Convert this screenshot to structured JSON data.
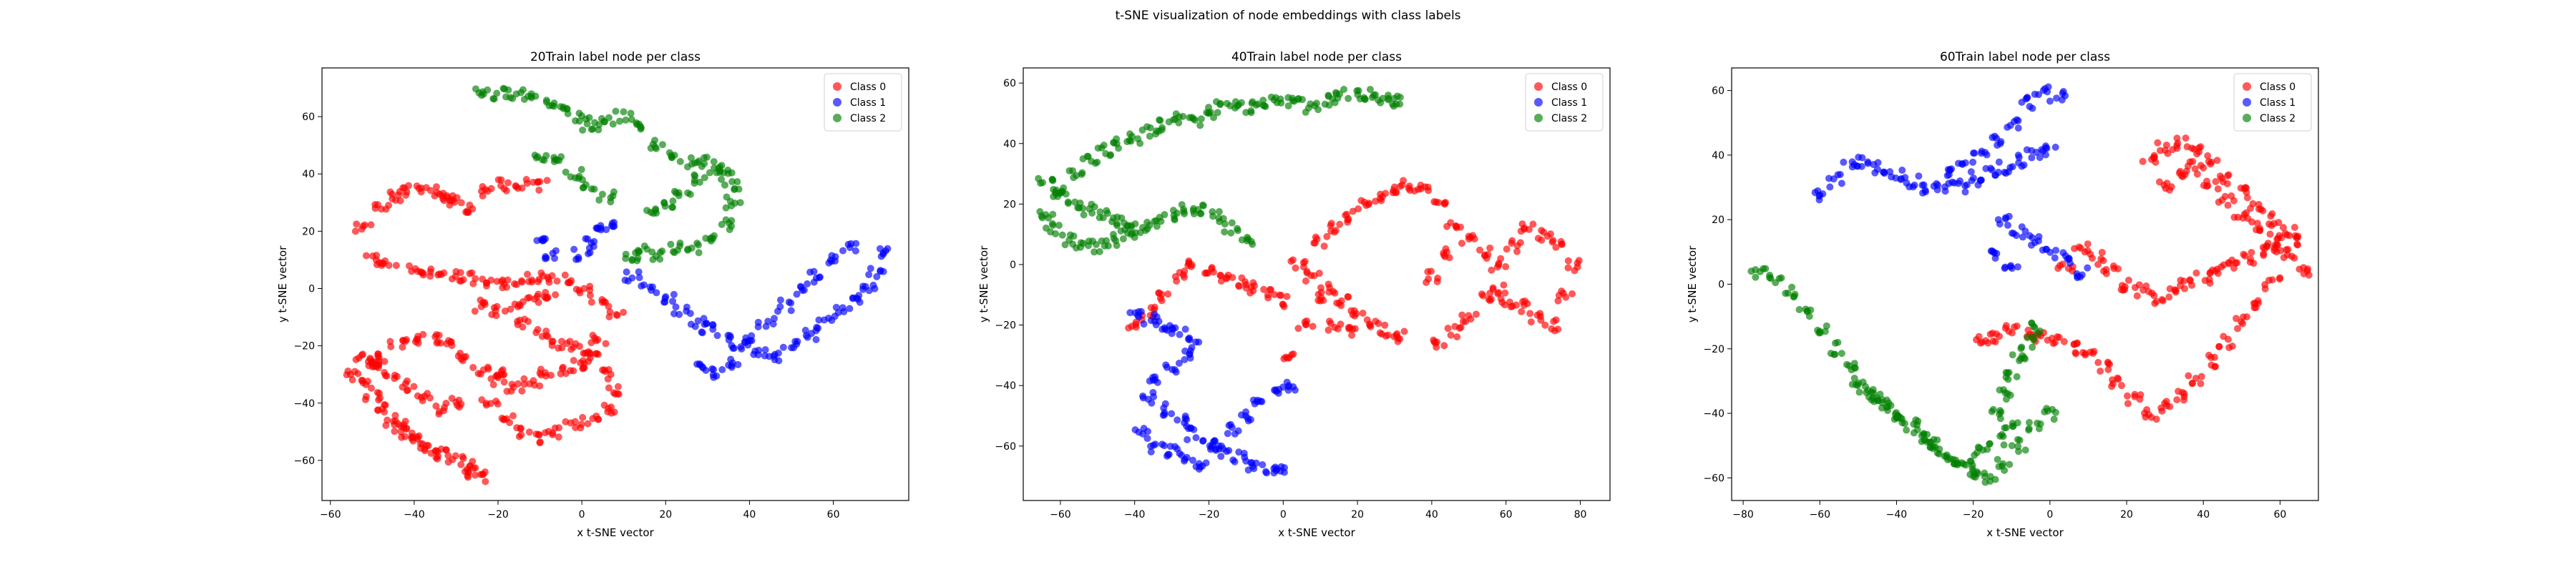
{
  "figure": {
    "suptitle": "t-SNE visualization of node embeddings with class labels"
  },
  "legend": {
    "entries": [
      {
        "name": "Class 0",
        "color": "#ff0000"
      },
      {
        "name": "Class 1",
        "color": "#0000ff"
      },
      {
        "name": "Class 2",
        "color": "#008000"
      }
    ]
  },
  "chart_data": [
    {
      "type": "scatter",
      "title": "20Train label node per class",
      "xlabel": "x t-SNE vector",
      "ylabel": "y t-SNE vector",
      "xlim": [
        -62,
        78
      ],
      "ylim": [
        -74,
        77
      ],
      "xticks": [
        -60,
        -40,
        -20,
        0,
        20,
        40,
        60
      ],
      "yticks": [
        -60,
        -40,
        -20,
        0,
        20,
        40,
        60
      ],
      "legend_position": "top-right",
      "grid": false,
      "series": [
        {
          "name": "Class 0",
          "color": "#ff0000",
          "x": [
            -52,
            -48,
            -45,
            -42,
            -38,
            -35,
            -32,
            -30,
            -26,
            -22,
            -18,
            -14,
            -10,
            -50,
            -46,
            -40,
            -36,
            -32,
            -28,
            -24,
            -20,
            -16,
            -12,
            -8,
            -4,
            0,
            4,
            8,
            -14,
            -10,
            -6,
            -2,
            2,
            6,
            8,
            6,
            2,
            -2,
            -6,
            -10,
            -14,
            -18,
            -22,
            -55,
            -52,
            -50,
            -48,
            -46,
            -44,
            -42,
            -40,
            -38,
            -36,
            -34,
            -30,
            -28,
            -26,
            -24,
            -52,
            -50,
            -48,
            -44,
            -40,
            -36,
            -32,
            -28,
            -24,
            -20,
            -30,
            -34,
            -38,
            -42,
            -46,
            -50,
            -20,
            -16,
            -12,
            -8,
            -4,
            0,
            2,
            4,
            -24,
            -20,
            -16,
            -12,
            -8
          ],
          "y": [
            22,
            28,
            32,
            34,
            35,
            34,
            32,
            30,
            28,
            34,
            36,
            37,
            36,
            10,
            8,
            6,
            6,
            5,
            4,
            2,
            2,
            2,
            3,
            4,
            3,
            0,
            -4,
            -8,
            -12,
            -16,
            -20,
            -20,
            -24,
            -30,
            -36,
            -42,
            -46,
            -48,
            -50,
            -52,
            -50,
            -46,
            -40,
            -30,
            -34,
            -38,
            -42,
            -46,
            -48,
            -50,
            -52,
            -54,
            -56,
            -58,
            -60,
            -62,
            -64,
            -66,
            -24,
            -28,
            -24,
            -20,
            -18,
            -18,
            -20,
            -24,
            -28,
            -30,
            -40,
            -42,
            -38,
            -34,
            -30,
            -26,
            -32,
            -34,
            -33,
            -30,
            -28,
            -26,
            -22,
            -18,
            -6,
            -8,
            -6,
            -4,
            -2
          ]
        },
        {
          "name": "Class 1",
          "color": "#0000ff",
          "x": [
            12,
            16,
            20,
            24,
            28,
            30,
            34,
            38,
            42,
            46,
            50,
            54,
            58,
            62,
            66,
            68,
            70,
            72,
            64,
            60,
            56,
            52,
            48,
            44,
            40,
            36,
            32,
            28,
            0,
            2,
            4,
            6,
            -10,
            -8
          ],
          "y": [
            4,
            0,
            -4,
            -8,
            -12,
            -14,
            -18,
            -20,
            -22,
            -24,
            -20,
            -16,
            -12,
            -8,
            -4,
            0,
            6,
            12,
            14,
            10,
            4,
            0,
            -6,
            -12,
            -18,
            -26,
            -30,
            -28,
            12,
            16,
            20,
            22,
            16,
            12
          ]
        },
        {
          "name": "Class 2",
          "color": "#008000",
          "x": [
            -24,
            -20,
            -16,
            -12,
            -8,
            -4,
            0,
            2,
            6,
            10,
            14,
            18,
            22,
            26,
            30,
            34,
            36,
            34,
            30,
            26,
            22,
            18,
            14,
            12,
            16,
            20,
            24,
            28,
            32,
            36,
            -10,
            -6,
            -2,
            2,
            6
          ],
          "y": [
            68,
            68,
            68,
            66,
            64,
            62,
            60,
            56,
            58,
            60,
            56,
            50,
            46,
            44,
            44,
            42,
            30,
            22,
            18,
            14,
            14,
            12,
            14,
            10,
            28,
            30,
            34,
            38,
            40,
            36,
            46,
            44,
            40,
            36,
            32
          ]
        }
      ]
    },
    {
      "type": "scatter",
      "title": "40Train label node per class",
      "xlabel": "x t-SNE vector",
      "ylabel": "y t-SNE vector",
      "xlim": [
        -70,
        88
      ],
      "ylim": [
        -78,
        65
      ],
      "xticks": [
        -60,
        -40,
        -20,
        0,
        20,
        40,
        60,
        80
      ],
      "yticks": [
        -60,
        -40,
        -20,
        0,
        20,
        40,
        60
      ],
      "legend_position": "top-right",
      "grid": false,
      "series": [
        {
          "name": "Class 0",
          "color": "#ff0000",
          "x": [
            10,
            14,
            18,
            22,
            26,
            30,
            34,
            38,
            42,
            46,
            50,
            54,
            58,
            60,
            64,
            68,
            72,
            76,
            78,
            74,
            70,
            66,
            62,
            58,
            54,
            50,
            46,
            42,
            40,
            44,
            4,
            8,
            12,
            16,
            20,
            24,
            28,
            32,
            0,
            -4,
            -8,
            -12,
            -16,
            -20,
            -24,
            -28,
            -32,
            -36,
            -40,
            2,
            6,
            10,
            14,
            18
          ],
          "y": [
            8,
            12,
            16,
            20,
            22,
            24,
            26,
            26,
            20,
            14,
            8,
            4,
            -8,
            -12,
            -14,
            -18,
            -20,
            -10,
            0,
            6,
            10,
            12,
            6,
            0,
            -10,
            -18,
            -22,
            -26,
            -4,
            4,
            0,
            -4,
            -8,
            -12,
            -16,
            -20,
            -22,
            -24,
            -12,
            -10,
            -8,
            -6,
            -4,
            -2,
            0,
            -4,
            -10,
            -16,
            -20,
            -30,
            -20,
            -10,
            -20,
            -22
          ]
        },
        {
          "name": "Class 1",
          "color": "#0000ff",
          "x": [
            -40,
            -36,
            -32,
            -28,
            -24,
            -26,
            -30,
            -34,
            -36,
            -32,
            -28,
            -24,
            -20,
            -16,
            -12,
            -8,
            -4,
            0,
            -38,
            -34,
            -30,
            -26,
            -22,
            -18,
            -14,
            -10,
            -6,
            -2,
            2
          ],
          "y": [
            -16,
            -18,
            -20,
            -22,
            -26,
            -30,
            -34,
            -38,
            -44,
            -48,
            -52,
            -56,
            -60,
            -62,
            -64,
            -66,
            -68,
            -68,
            -56,
            -60,
            -62,
            -64,
            -66,
            -60,
            -54,
            -50,
            -46,
            -42,
            -40
          ]
        },
        {
          "name": "Class 2",
          "color": "#008000",
          "x": [
            -64,
            -60,
            -56,
            -52,
            -48,
            -44,
            -40,
            -36,
            -32,
            -28,
            -24,
            -20,
            -16,
            -12,
            -8,
            -4,
            0,
            4,
            8,
            12,
            16,
            20,
            24,
            28,
            30,
            -62,
            -58,
            -54,
            -50,
            -46,
            -42,
            -38,
            -34,
            -30,
            -26,
            -22,
            -18,
            -14,
            -10,
            -64,
            -60,
            -56,
            -52,
            -48,
            -44,
            -40
          ],
          "y": [
            16,
            24,
            30,
            34,
            38,
            40,
            42,
            44,
            46,
            48,
            48,
            50,
            52,
            52,
            52,
            54,
            54,
            54,
            52,
            54,
            56,
            56,
            56,
            54,
            54,
            12,
            8,
            6,
            6,
            8,
            10,
            12,
            14,
            16,
            18,
            18,
            16,
            12,
            8,
            28,
            24,
            20,
            18,
            16,
            14,
            12
          ]
        }
      ]
    },
    {
      "type": "scatter",
      "title": "60Train label node per class",
      "xlabel": "x t-SNE vector",
      "ylabel": "y t-SNE vector",
      "xlim": [
        -83,
        70
      ],
      "ylim": [
        -67,
        67
      ],
      "xticks": [
        -80,
        -60,
        -40,
        -20,
        0,
        20,
        40,
        60
      ],
      "yticks": [
        -60,
        -40,
        -20,
        0,
        20,
        40,
        60
      ],
      "legend_position": "top-right",
      "grid": false,
      "series": [
        {
          "name": "Class 0",
          "color": "#ff0000",
          "x": [
            26,
            30,
            34,
            38,
            42,
            46,
            50,
            54,
            58,
            62,
            64,
            60,
            56,
            52,
            48,
            44,
            40,
            36,
            32,
            28,
            24,
            20,
            16,
            12,
            8,
            4,
            30,
            34,
            38,
            42,
            46,
            50,
            54,
            58,
            62,
            66,
            58,
            54,
            50,
            46,
            42,
            38,
            34,
            30,
            26,
            22,
            18,
            14,
            10,
            6,
            2,
            -2,
            -6,
            -10,
            -14,
            -18
          ],
          "y": [
            38,
            42,
            44,
            42,
            38,
            32,
            28,
            24,
            20,
            16,
            14,
            12,
            10,
            8,
            6,
            4,
            2,
            0,
            -2,
            -4,
            -2,
            0,
            4,
            8,
            12,
            6,
            30,
            34,
            36,
            30,
            26,
            22,
            18,
            14,
            10,
            4,
            0,
            -6,
            -12,
            -18,
            -24,
            -30,
            -34,
            -38,
            -40,
            -36,
            -30,
            -26,
            -22,
            -20,
            -18,
            -16,
            -16,
            -14,
            -16,
            -18
          ]
        },
        {
          "name": "Class 1",
          "color": "#0000ff",
          "x": [
            -60,
            -56,
            -52,
            -48,
            -44,
            -40,
            -36,
            -32,
            -28,
            -24,
            -20,
            -16,
            -12,
            -8,
            -4,
            0,
            2,
            -2,
            -6,
            -10,
            -14,
            -18,
            -22,
            -26,
            -12,
            -8,
            -4,
            0,
            4,
            8,
            -14,
            -10
          ],
          "y": [
            28,
            32,
            36,
            38,
            36,
            34,
            32,
            30,
            30,
            30,
            32,
            34,
            36,
            38,
            40,
            42,
            58,
            60,
            56,
            50,
            44,
            40,
            36,
            34,
            20,
            16,
            14,
            10,
            8,
            4,
            10,
            6
          ]
        },
        {
          "name": "Class 2",
          "color": "#008000",
          "x": [
            -76,
            -72,
            -68,
            -64,
            -60,
            -56,
            -52,
            -48,
            -44,
            -40,
            -36,
            -32,
            -28,
            -24,
            -20,
            -16,
            -12,
            -8,
            -4,
            0,
            -14,
            -12,
            -10,
            -8,
            -6,
            -4,
            -50,
            -46,
            -42,
            -38,
            -34,
            -30,
            -26,
            -22,
            -18,
            -14,
            -10
          ],
          "y": [
            4,
            2,
            -2,
            -8,
            -14,
            -20,
            -26,
            -32,
            -36,
            -40,
            -44,
            -48,
            -52,
            -56,
            -58,
            -60,
            -56,
            -50,
            -44,
            -40,
            -40,
            -34,
            -28,
            -22,
            -18,
            -14,
            -30,
            -34,
            -38,
            -42,
            -46,
            -50,
            -54,
            -56,
            -52,
            -48,
            -44
          ]
        }
      ]
    }
  ]
}
